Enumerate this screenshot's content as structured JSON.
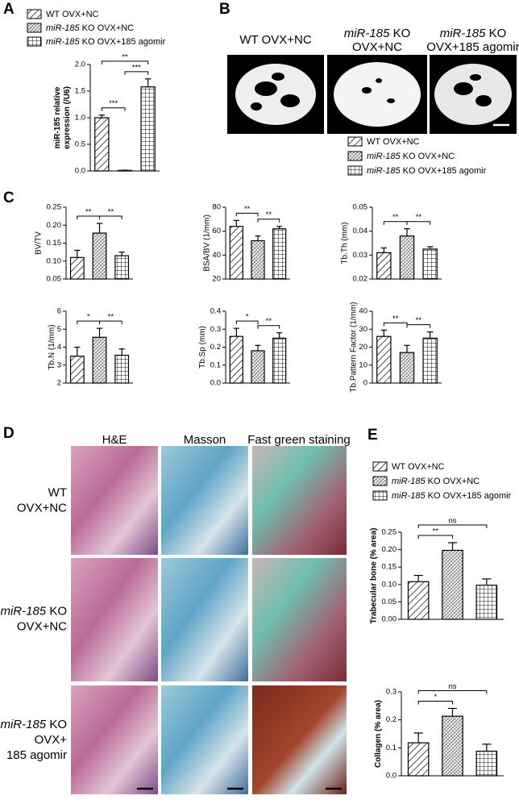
{
  "panel_labels": {
    "a": "A",
    "b": "B",
    "c": "C",
    "d": "D",
    "e": "E"
  },
  "legends": {
    "a": [
      {
        "rest": "WT OVX+NC"
      },
      {
        "em": "miR-185",
        "rest": " KO OVX+NC"
      },
      {
        "em": "miR-185",
        "rest": " KO OVX+185 agomir"
      }
    ],
    "c": [
      {
        "rest": "WT OVX+NC"
      },
      {
        "em": "miR-185",
        "rest": " KO OVX+NC"
      },
      {
        "em": "miR-185",
        "rest": " KO OVX+185 agomir"
      }
    ],
    "e": [
      {
        "rest": "WT OVX+NC"
      },
      {
        "em": "miR-185",
        "rest": " KO OVX+NC"
      },
      {
        "em": "miR-185",
        "rest": " KO OVX+185 agomir"
      }
    ]
  },
  "ct_images": {
    "labels": [
      [
        {
          "rest": "WT OVX+NC"
        }
      ],
      [
        {
          "em": "miR-185",
          "rest": " KO"
        },
        {
          "rest": "OVX+NC"
        }
      ],
      [
        {
          "em": "miR-185",
          "rest": " KO"
        },
        {
          "rest": "OVX+185 agomir"
        }
      ]
    ]
  },
  "histology": {
    "columns": [
      "H&E",
      "Masson",
      "Fast green staining"
    ],
    "rows": [
      [
        {
          "rest": "WT"
        },
        {
          "rest": "OVX+NC"
        }
      ],
      [
        {
          "em": "miR-185",
          "rest": " KO"
        },
        {
          "rest": "OVX+NC"
        }
      ],
      [
        {
          "em": "miR-185",
          "rest": " KO"
        },
        {
          "rest": "OVX+"
        },
        {
          "rest": "185 agomir"
        }
      ]
    ]
  },
  "chart_data": [
    {
      "type": "bar",
      "ylabel": [
        "miR-185 relative",
        "expression (/U6)"
      ],
      "bold_ylabel": true,
      "categories": [
        null,
        null,
        null
      ],
      "values": [
        1.0,
        0.01,
        1.58
      ],
      "errors": [
        0.05,
        0.005,
        0.15
      ],
      "ylim": [
        0,
        2.0
      ],
      "yticks": [
        {
          "value": 0,
          "label": "0.0"
        },
        0.5,
        {
          "value": 1.0,
          "label": "1.0"
        },
        1.5,
        {
          "value": 2.0,
          "label": "2.0"
        }
      ],
      "annotations": [
        {
          "label": "***",
          "groups": [
            0,
            1
          ]
        },
        {
          "label": "***",
          "groups": [
            1,
            2
          ]
        },
        {
          "label": "**",
          "groups": [
            0,
            2
          ]
        }
      ]
    },
    {
      "type": "bar",
      "ylabel": "BV/TV",
      "categories": [
        null,
        null,
        null
      ],
      "values": [
        0.11,
        0.178,
        0.115
      ],
      "errors": [
        0.02,
        0.027,
        0.01
      ],
      "ylim": [
        0.05,
        0.25
      ],
      "yticks": [
        0.05,
        {
          "value": 0.1,
          "label": "0.10"
        },
        0.15,
        {
          "value": 0.2,
          "label": "0.20"
        },
        0.25
      ],
      "annotations": [
        {
          "label": "**",
          "groups": [
            0,
            1
          ]
        },
        {
          "label": "**",
          "groups": [
            1,
            2
          ]
        }
      ]
    },
    {
      "type": "bar",
      "ylabel": "BSA/BV (1/mm)",
      "categories": [
        null,
        null,
        null
      ],
      "values": [
        64,
        52,
        62
      ],
      "errors": [
        5,
        4,
        2
      ],
      "ylim": [
        20,
        80
      ],
      "yticks": [
        20,
        40,
        60,
        80
      ],
      "annotations": [
        {
          "label": "**",
          "groups": [
            0,
            1
          ]
        },
        {
          "label": "**",
          "groups": [
            1,
            2
          ]
        }
      ]
    },
    {
      "type": "bar",
      "ylabel": "Tb.Th (mm)",
      "categories": [
        null,
        null,
        null
      ],
      "values": [
        0.031,
        0.038,
        0.0325
      ],
      "errors": [
        0.002,
        0.003,
        0.001
      ],
      "ylim": [
        0.02,
        0.05
      ],
      "yticks": [
        0.02,
        0.03,
        0.04,
        0.05
      ],
      "annotations": [
        {
          "label": "**",
          "groups": [
            0,
            1
          ]
        },
        {
          "label": "**",
          "groups": [
            1,
            2
          ]
        }
      ]
    },
    {
      "type": "bar",
      "ylabel": "Tb.N (1/mm)",
      "categories": [
        null,
        null,
        null
      ],
      "values": [
        3.5,
        4.55,
        3.55
      ],
      "errors": [
        0.5,
        0.5,
        0.35
      ],
      "ylim": [
        2,
        6
      ],
      "yticks": [
        2,
        3,
        4,
        5,
        6
      ],
      "annotations": [
        {
          "label": "*",
          "groups": [
            0,
            1
          ]
        },
        {
          "label": "**",
          "groups": [
            1,
            2
          ]
        }
      ]
    },
    {
      "type": "bar",
      "ylabel": "Tb.Sp (mm)",
      "categories": [
        null,
        null,
        null
      ],
      "values": [
        0.26,
        0.18,
        0.25
      ],
      "errors": [
        0.045,
        0.03,
        0.03
      ],
      "ylim": [
        0,
        0.4
      ],
      "yticks": [
        {
          "value": 0,
          "label": "0.0"
        },
        0.1,
        0.2,
        0.3,
        0.4
      ],
      "annotations": [
        {
          "label": "*",
          "groups": [
            0,
            1
          ]
        },
        {
          "label": "**",
          "groups": [
            1,
            2
          ]
        }
      ]
    },
    {
      "type": "bar",
      "ylabel": "Tb.Pattern Factor (1/mm)",
      "categories": [
        null,
        null,
        null
      ],
      "values": [
        26,
        17,
        25
      ],
      "errors": [
        3.5,
        4,
        3.5
      ],
      "ylim": [
        0,
        40
      ],
      "yticks": [
        0,
        10,
        20,
        30,
        40
      ],
      "annotations": [
        {
          "label": "**",
          "groups": [
            0,
            1
          ]
        },
        {
          "label": "**",
          "groups": [
            1,
            2
          ]
        }
      ]
    },
    {
      "type": "bar",
      "ylabel": "Trabecular bone (% area)",
      "bold_ylabel": true,
      "categories": [
        null,
        null,
        null
      ],
      "values": [
        0.108,
        0.198,
        0.098
      ],
      "errors": [
        0.018,
        0.022,
        0.018
      ],
      "ylim": [
        0,
        0.25
      ],
      "yticks": [
        {
          "value": 0,
          "label": "0.00"
        },
        0.05,
        {
          "value": 0.1,
          "label": "0.10"
        },
        0.15,
        {
          "value": 0.2,
          "label": "0.20"
        },
        0.25
      ],
      "annotations": [
        {
          "label": "**",
          "groups": [
            0,
            1
          ]
        },
        {
          "label": "ns",
          "groups": [
            0,
            2
          ]
        }
      ]
    },
    {
      "type": "bar",
      "ylabel": "Collagen (% area)",
      "bold_ylabel": true,
      "categories": [
        null,
        null,
        null
      ],
      "values": [
        0.118,
        0.213,
        0.088
      ],
      "errors": [
        0.035,
        0.028,
        0.025
      ],
      "ylim": [
        0,
        0.3
      ],
      "yticks": [
        {
          "value": 0,
          "label": "0.0"
        },
        0.1,
        0.2,
        0.3
      ],
      "annotations": [
        {
          "label": "*",
          "groups": [
            0,
            1
          ]
        },
        {
          "label": "ns",
          "groups": [
            0,
            2
          ]
        }
      ]
    }
  ]
}
